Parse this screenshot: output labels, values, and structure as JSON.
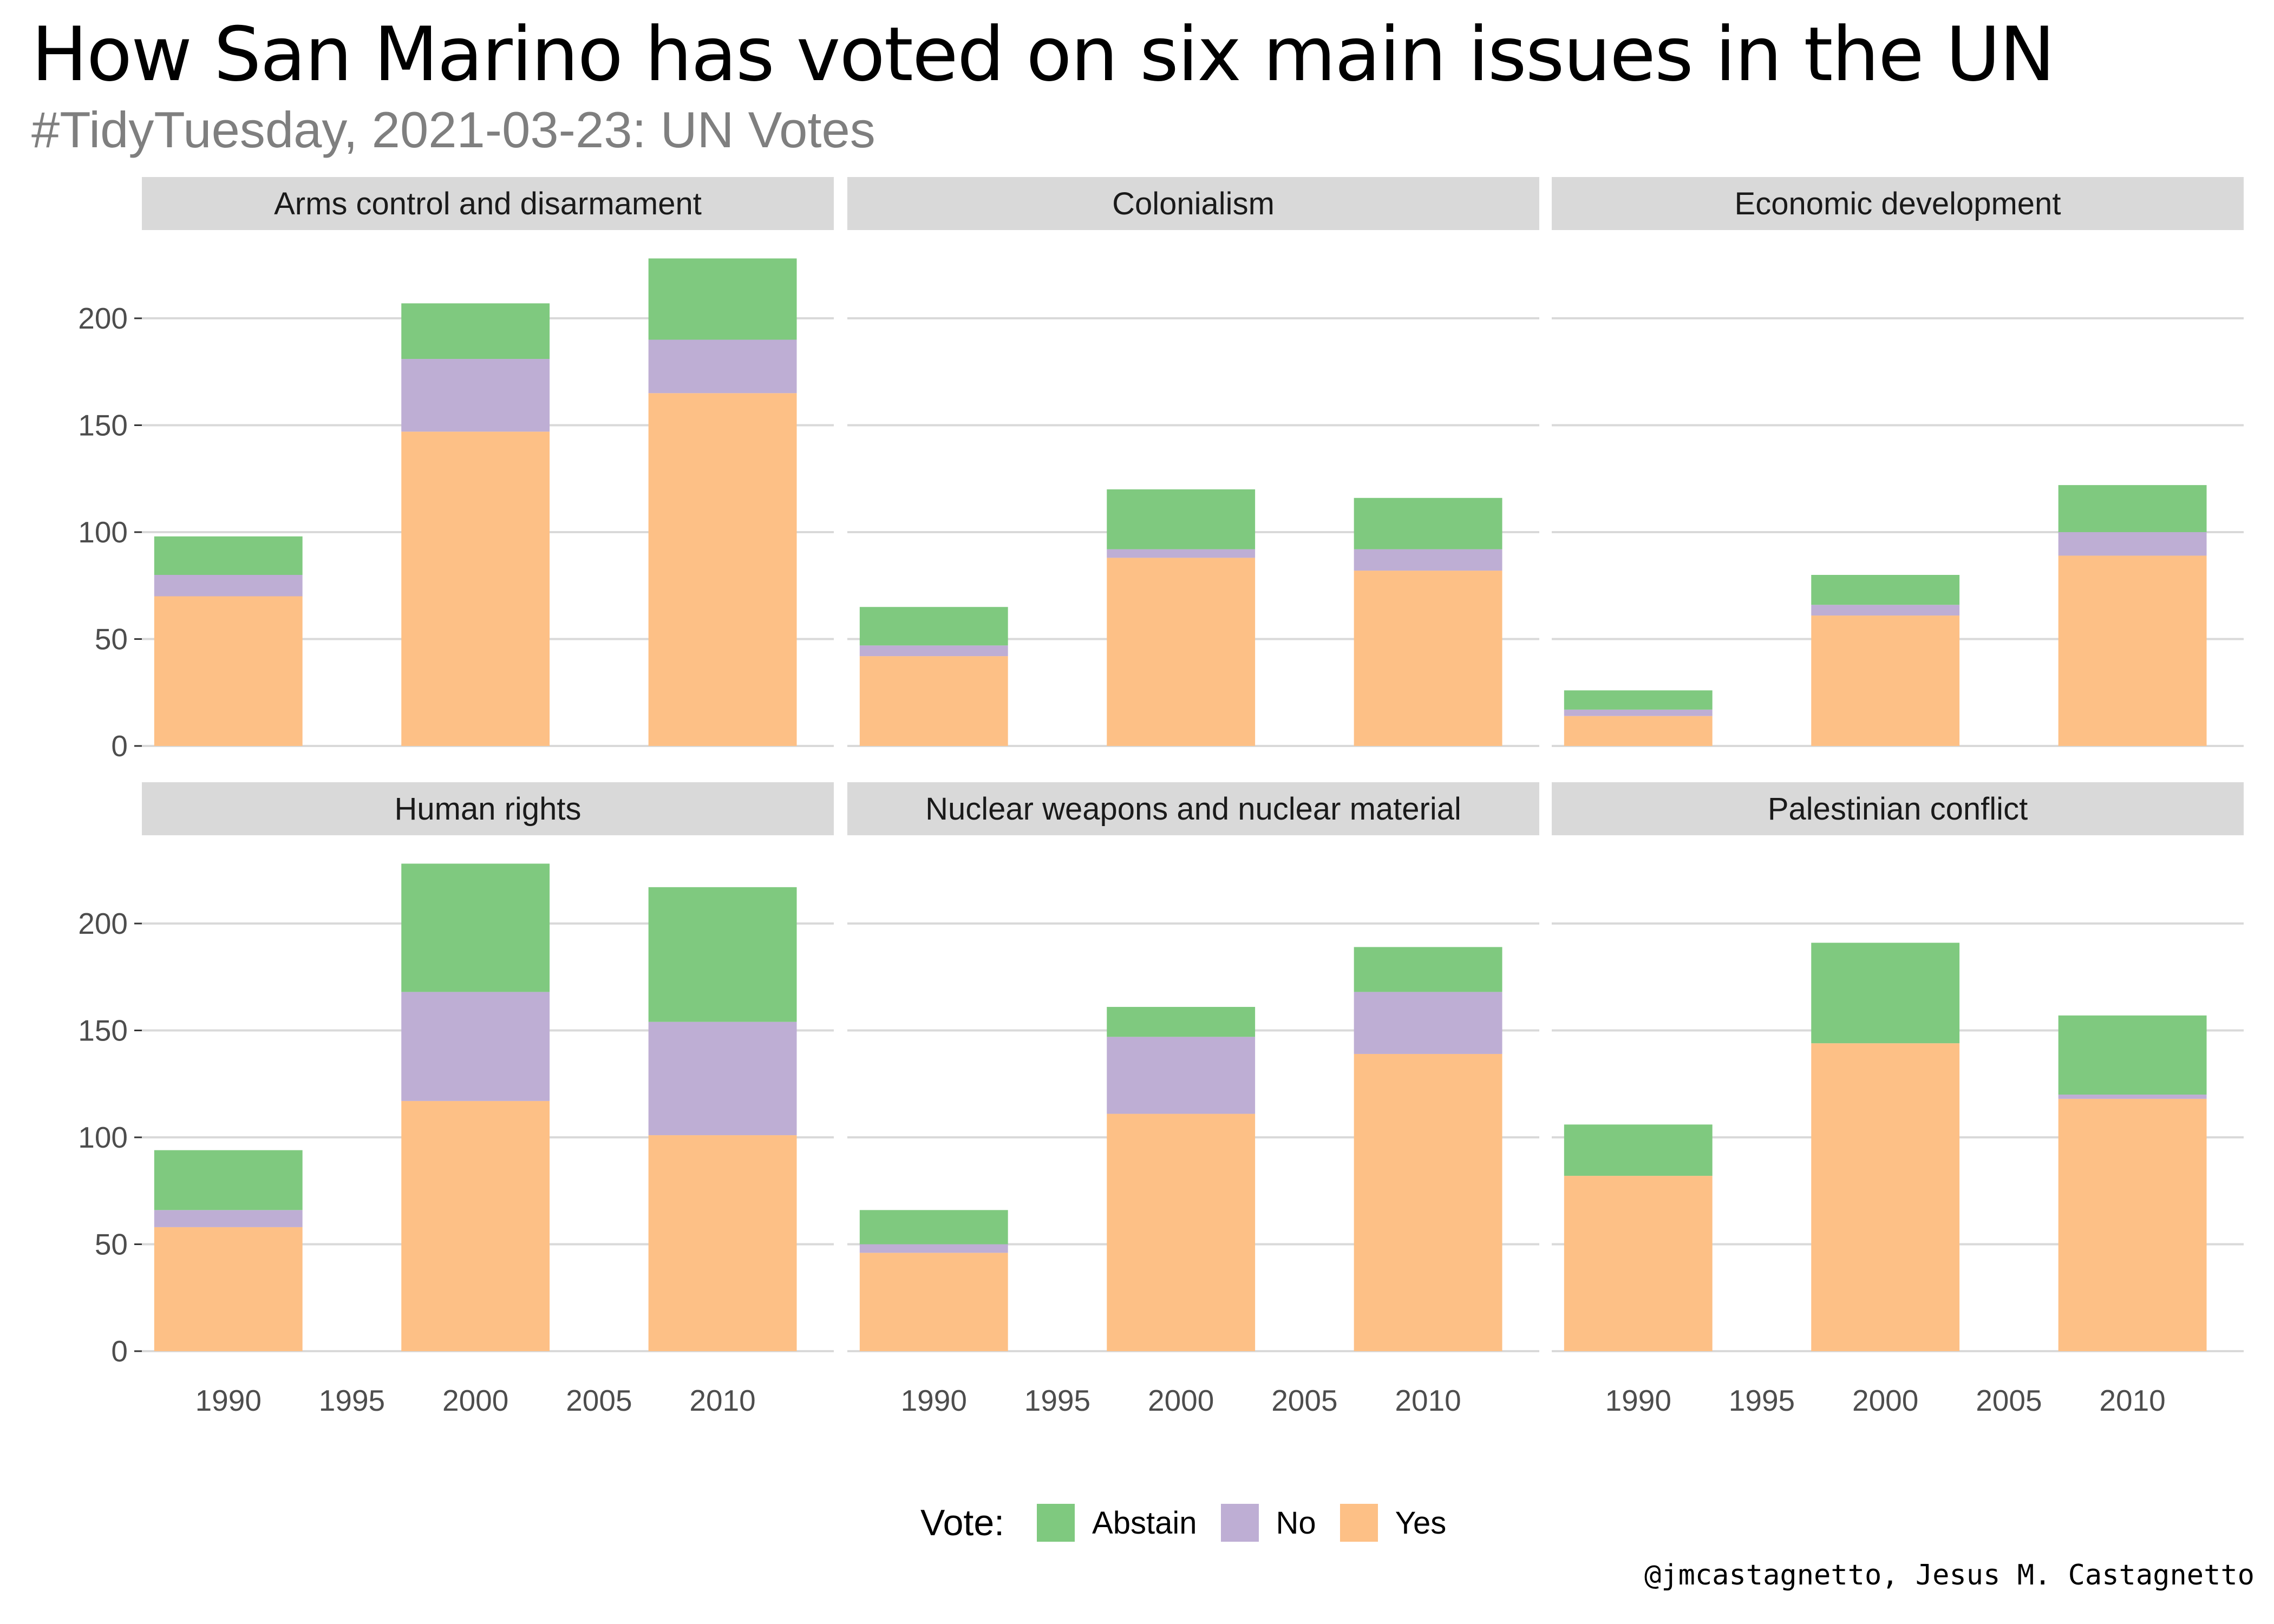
{
  "title": "How San Marino has voted on six main issues in the UN",
  "subtitle": "#TidyTuesday, 2021-03-23: UN Votes",
  "caption": "@jmcastagnetto, Jesus M. Castagnetto",
  "legend": {
    "title": "Vote:",
    "items": [
      {
        "label": "Abstain",
        "color": "#7fc97f"
      },
      {
        "label": "No",
        "color": "#beaed4"
      },
      {
        "label": "Yes",
        "color": "#fdc086"
      }
    ]
  },
  "chart_data": {
    "type": "bar",
    "stacked": true,
    "facets": [
      "Arms control and disarmament",
      "Colonialism",
      "Economic development",
      "Human rights",
      "Nuclear weapons and nuclear material",
      "Palestinian conflict"
    ],
    "x": [
      1990,
      2000,
      2010
    ],
    "x_ticks": [
      1990,
      1995,
      2000,
      2005,
      2010
    ],
    "xlim": [
      1986.5,
      2014.5
    ],
    "y_ticks": [
      0,
      50,
      100,
      150,
      200
    ],
    "ylim": [
      0,
      240
    ],
    "series": [
      {
        "name": "Yes",
        "color": "#fdc086",
        "values": [
          [
            70,
            147,
            165
          ],
          [
            42,
            88,
            82
          ],
          [
            14,
            61,
            89
          ],
          [
            58,
            117,
            101
          ],
          [
            46,
            111,
            139
          ],
          [
            82,
            144,
            118
          ]
        ]
      },
      {
        "name": "No",
        "color": "#beaed4",
        "values": [
          [
            10,
            34,
            25
          ],
          [
            5,
            4,
            10
          ],
          [
            3,
            5,
            11
          ],
          [
            8,
            51,
            53
          ],
          [
            4,
            36,
            29
          ],
          [
            0,
            0,
            2
          ]
        ]
      },
      {
        "name": "Abstain",
        "color": "#7fc97f",
        "values": [
          [
            18,
            26,
            38
          ],
          [
            18,
            28,
            24
          ],
          [
            9,
            14,
            22
          ],
          [
            28,
            60,
            63
          ],
          [
            16,
            14,
            21
          ],
          [
            24,
            47,
            37
          ]
        ]
      }
    ],
    "grid": true,
    "legend_position": "bottom"
  }
}
